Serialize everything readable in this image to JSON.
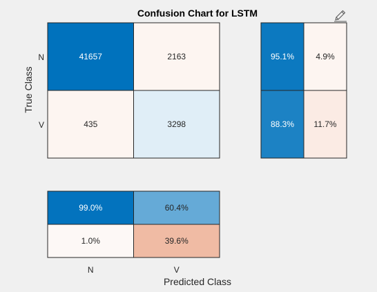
{
  "chart_data": {
    "type": "heatmap",
    "title": "Confusion Chart for LSTM",
    "xlabel": "Predicted Class",
    "ylabel": "True Class",
    "classes": [
      "N",
      "V"
    ],
    "matrix": [
      [
        41657,
        2163
      ],
      [
        435,
        3298
      ]
    ],
    "matrix_text": [
      [
        "41657",
        "2163"
      ],
      [
        "435",
        "3298"
      ]
    ],
    "row_summary": [
      [
        95.1,
        4.9
      ],
      [
        88.3,
        11.7
      ]
    ],
    "row_summary_text": [
      [
        "95.1%",
        "4.9%"
      ],
      [
        "88.3%",
        "11.7%"
      ]
    ],
    "column_summary": [
      [
        99.0,
        60.4
      ],
      [
        1.0,
        39.6
      ]
    ],
    "column_summary_text": [
      [
        "99.0%",
        "60.4%"
      ],
      [
        "1.0%",
        "39.6%"
      ]
    ],
    "colors": {
      "correct": "#0072bd",
      "incorrect": "#d95319",
      "background": "#f0f0f0"
    }
  },
  "toolbar": {
    "icon": "edit-pencil-icon"
  }
}
